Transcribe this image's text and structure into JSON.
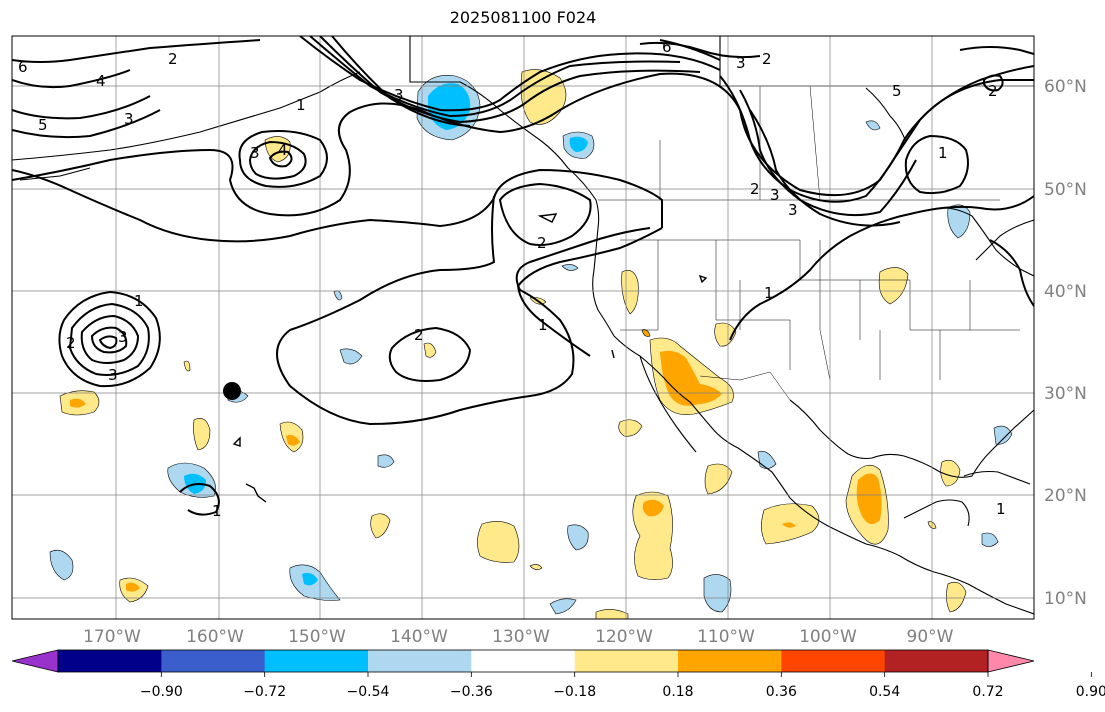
{
  "title": "2025081100 F024",
  "map": {
    "lon_labels": [
      "170°W",
      "160°W",
      "150°W",
      "140°W",
      "130°W",
      "120°W",
      "110°W",
      "100°W",
      "90°W"
    ],
    "lat_labels": [
      "60°N",
      "50°N",
      "40°N",
      "30°N",
      "20°N",
      "10°N"
    ],
    "marker": "storm-position-dot",
    "contour_labels": [
      "6",
      "4",
      "3",
      "5",
      "3",
      "4",
      "3",
      "2",
      "1",
      "2",
      "1",
      "2",
      "3",
      "1",
      "3",
      "2",
      "3",
      "6",
      "3",
      "2",
      "2",
      "5",
      "1",
      "2",
      "3",
      "1",
      "1",
      "1"
    ]
  },
  "colorbar": {
    "ticks": [
      "−0.90",
      "−0.72",
      "−0.54",
      "−0.36",
      "−0.18",
      "0.18",
      "0.36",
      "0.54",
      "0.72",
      "0.90"
    ],
    "colors": [
      "#9932cc",
      "#00008b",
      "#3a5fcd",
      "#00bfff",
      "#add8f0",
      "#ffffff",
      "#ffe98a",
      "#ffa500",
      "#ff4500",
      "#b22222",
      "#ff88aa"
    ]
  }
}
